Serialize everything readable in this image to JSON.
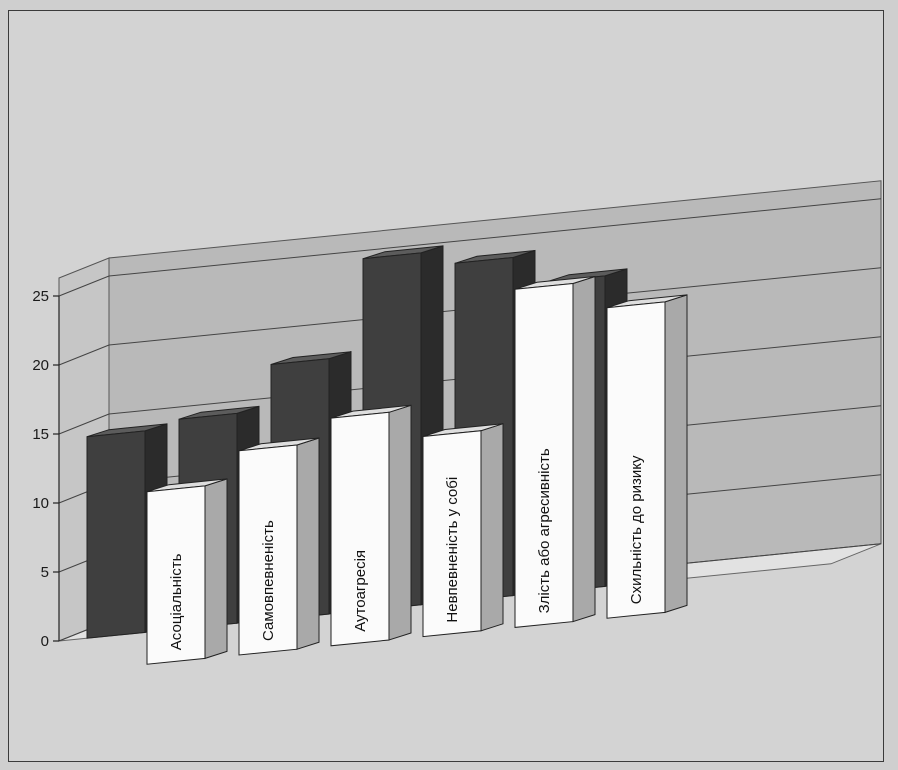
{
  "chart_data": {
    "type": "bar",
    "title": "",
    "xlabel": "",
    "ylabel": "",
    "ylim": [
      0,
      25
    ],
    "yticks": [
      0,
      5,
      10,
      15,
      20,
      25
    ],
    "grid": true,
    "three_d": true,
    "categories": [
      "Асоціальність",
      "Самовпевненість",
      "Аутоагресія",
      "Невпевненість у собі",
      "Злість або агресивність",
      "Схильність до ризику"
    ],
    "series": [
      {
        "values": [
          14.6,
          15.2,
          18.5,
          25.5,
          24.5,
          22.5
        ],
        "color": "#4a4a4a"
      },
      {
        "values": [
          12.5,
          14.8,
          16.5,
          14.5,
          24.5,
          22.5
        ],
        "color": "#f4f4f4"
      }
    ]
  },
  "colors": {
    "back_wall": "#b9b9b9",
    "floor": "#e2e2e2",
    "dark_front": "#3f3f3f",
    "dark_side": "#2b2b2b",
    "dark_top": "#5c5c5c",
    "light_front": "#fbfbfb",
    "light_side": "#a9a9a9",
    "light_top": "#dedede"
  }
}
